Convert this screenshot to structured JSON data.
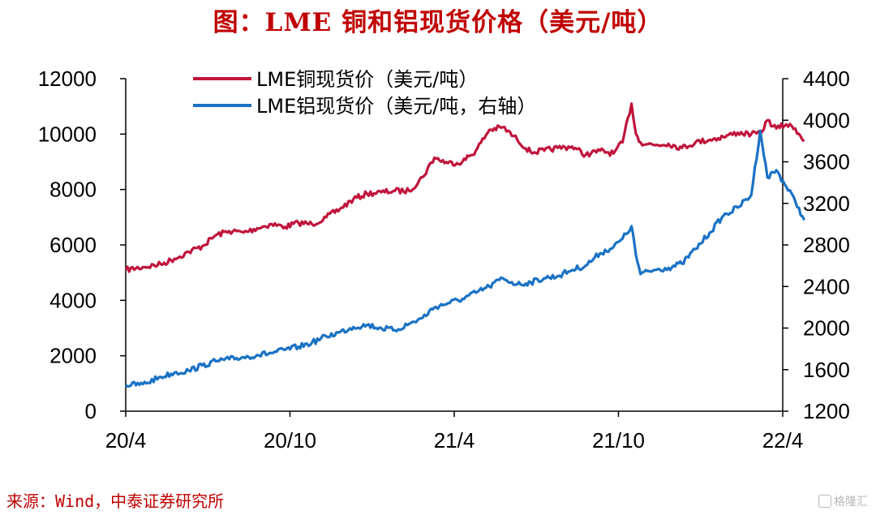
{
  "chart_data": {
    "type": "line",
    "title": "图：LME 铜和铝现货价格（美元/吨）",
    "x_ticks": [
      "20/4",
      "20/10",
      "21/4",
      "21/10",
      "22/4"
    ],
    "x_range": [
      "2020-04",
      "2022-04"
    ],
    "y_left": {
      "min": 0,
      "max": 12000,
      "ticks": [
        "0",
        "2000",
        "4000",
        "6000",
        "8000",
        "10000",
        "12000"
      ]
    },
    "y_right": {
      "min": 1200,
      "max": 4400,
      "ticks": [
        "1200",
        "1600",
        "2000",
        "2400",
        "2800",
        "3200",
        "3600",
        "4000",
        "4400"
      ]
    },
    "legend_position": "top-left",
    "grid": false,
    "series": [
      {
        "name": "LME铜现货价（美元/吨）",
        "axis": "left",
        "color": "#c0143c",
        "x": [
          "2020-04-01",
          "2020-04-20",
          "2020-05-10",
          "2020-05-25",
          "2020-06-10",
          "2020-06-25",
          "2020-07-10",
          "2020-07-25",
          "2020-08-10",
          "2020-08-25",
          "2020-09-10",
          "2020-09-25",
          "2020-10-10",
          "2020-10-25",
          "2020-11-10",
          "2020-11-25",
          "2020-12-10",
          "2020-12-25",
          "2021-01-10",
          "2021-01-25",
          "2021-02-10",
          "2021-02-25",
          "2021-03-10",
          "2021-03-25",
          "2021-04-10",
          "2021-04-25",
          "2021-05-10",
          "2021-05-25",
          "2021-06-10",
          "2021-06-25",
          "2021-07-10",
          "2021-07-25",
          "2021-08-10",
          "2021-08-25",
          "2021-09-10",
          "2021-09-25",
          "2021-10-05",
          "2021-10-15",
          "2021-10-20",
          "2021-10-25",
          "2021-11-10",
          "2021-11-25",
          "2021-12-10",
          "2021-12-25",
          "2022-01-10",
          "2022-01-25",
          "2022-02-10",
          "2022-02-25",
          "2022-03-07",
          "2022-03-15",
          "2022-03-25",
          "2022-04-05",
          "2022-04-15",
          "2022-04-25"
        ],
        "values": [
          5100,
          5200,
          5300,
          5500,
          5750,
          5950,
          6350,
          6500,
          6450,
          6600,
          6750,
          6650,
          6800,
          6750,
          7000,
          7300,
          7650,
          7850,
          7900,
          7950,
          7950,
          8450,
          9150,
          8950,
          9000,
          9400,
          10150,
          10250,
          9800,
          9350,
          9400,
          9500,
          9550,
          9250,
          9400,
          9300,
          9700,
          11100,
          10000,
          9700,
          9600,
          9650,
          9500,
          9700,
          9800,
          9900,
          10050,
          10000,
          10000,
          10500,
          10200,
          10350,
          10200,
          9750
        ]
      },
      {
        "name": "LME铝现货价（美元/吨，右轴）",
        "axis": "right",
        "color": "#1a72c4",
        "x": [
          "2020-04-01",
          "2020-04-20",
          "2020-05-10",
          "2020-05-25",
          "2020-06-10",
          "2020-06-25",
          "2020-07-10",
          "2020-07-25",
          "2020-08-10",
          "2020-08-25",
          "2020-09-10",
          "2020-09-25",
          "2020-10-10",
          "2020-10-25",
          "2020-11-10",
          "2020-11-25",
          "2020-12-10",
          "2020-12-25",
          "2021-01-10",
          "2021-01-25",
          "2021-02-10",
          "2021-02-25",
          "2021-03-10",
          "2021-03-25",
          "2021-04-10",
          "2021-04-25",
          "2021-05-10",
          "2021-05-25",
          "2021-06-10",
          "2021-06-25",
          "2021-07-10",
          "2021-07-25",
          "2021-08-10",
          "2021-08-25",
          "2021-09-10",
          "2021-09-25",
          "2021-10-05",
          "2021-10-15",
          "2021-10-20",
          "2021-10-25",
          "2021-11-10",
          "2021-11-25",
          "2021-12-10",
          "2021-12-25",
          "2022-01-10",
          "2022-01-25",
          "2022-02-10",
          "2022-02-25",
          "2022-03-07",
          "2022-03-15",
          "2022-03-25",
          "2022-04-05",
          "2022-04-15",
          "2022-04-25"
        ],
        "values": [
          1450,
          1460,
          1530,
          1570,
          1590,
          1640,
          1680,
          1700,
          1720,
          1740,
          1760,
          1790,
          1820,
          1860,
          1920,
          1960,
          2010,
          2030,
          2000,
          1980,
          2040,
          2100,
          2200,
          2240,
          2280,
          2340,
          2400,
          2480,
          2420,
          2440,
          2480,
          2500,
          2560,
          2600,
          2720,
          2780,
          2860,
          2980,
          2700,
          2520,
          2560,
          2580,
          2620,
          2760,
          2920,
          3080,
          3160,
          3280,
          3900,
          3450,
          3520,
          3360,
          3220,
          3040
        ]
      }
    ]
  },
  "source": "来源：Wind，中泰证券研究所",
  "watermark": "格隆汇"
}
